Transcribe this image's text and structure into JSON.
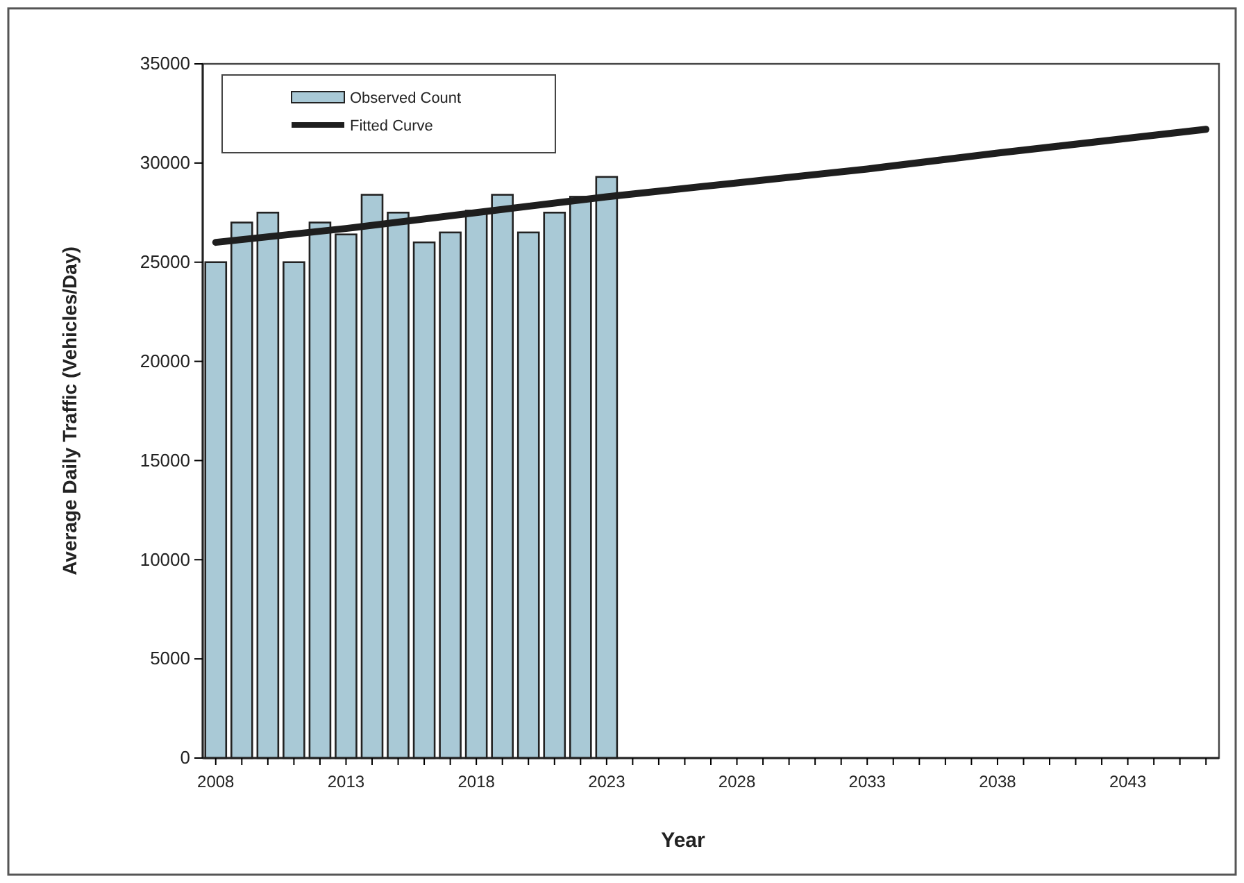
{
  "chart_data": {
    "type": "bar",
    "xlabel": "Year",
    "ylabel": "Average Daily Traffic (Vehicles/Day)",
    "x": [
      2008,
      2009,
      2010,
      2011,
      2012,
      2013,
      2014,
      2015,
      2016,
      2017,
      2018,
      2019,
      2020,
      2021,
      2022,
      2023
    ],
    "series": [
      {
        "name": "Observed Count",
        "color": "#a9c9d6",
        "values": [
          25000,
          27000,
          27500,
          25000,
          27000,
          26400,
          28400,
          27500,
          26000,
          26500,
          27600,
          28400,
          26500,
          27500,
          28300,
          29300
        ]
      },
      {
        "name": "Fitted Curve",
        "type": "line",
        "color": "#1e1e1e",
        "x": [
          2008,
          2013,
          2018,
          2023,
          2028,
          2033,
          2038,
          2046
        ],
        "values": [
          26000,
          26700,
          27500,
          28300,
          29000,
          29700,
          30500,
          31700
        ]
      }
    ],
    "xlim": [
      2007.5,
      2046.5
    ],
    "xticks": [
      2008,
      {
        "value": 2009,
        "label": null
      },
      {
        "value": 2010,
        "label": null
      },
      {
        "value": 2011,
        "label": null
      },
      {
        "value": 2012,
        "label": null
      },
      2013,
      {
        "value": 2014,
        "label": null
      },
      {
        "value": 2015,
        "label": null
      },
      {
        "value": 2016,
        "label": null
      },
      {
        "value": 2017,
        "label": null
      },
      2018,
      {
        "value": 2019,
        "label": null
      },
      {
        "value": 2020,
        "label": null
      },
      {
        "value": 2021,
        "label": null
      },
      {
        "value": 2022,
        "label": null
      },
      2023,
      {
        "value": 2024,
        "label": null
      },
      {
        "value": 2025,
        "label": null
      },
      {
        "value": 2026,
        "label": null
      },
      {
        "value": 2027,
        "label": null
      },
      2028,
      {
        "value": 2029,
        "label": null
      },
      {
        "value": 2030,
        "label": null
      },
      {
        "value": 2031,
        "label": null
      },
      {
        "value": 2032,
        "label": null
      },
      2033,
      {
        "value": 2034,
        "label": null
      },
      {
        "value": 2035,
        "label": null
      },
      {
        "value": 2036,
        "label": null
      },
      {
        "value": 2037,
        "label": null
      },
      2038,
      {
        "value": 2039,
        "label": null
      },
      {
        "value": 2040,
        "label": null
      },
      {
        "value": 2041,
        "label": null
      },
      {
        "value": 2042,
        "label": null
      },
      2043,
      {
        "value": 2044,
        "label": null
      },
      {
        "value": 2045,
        "label": null
      },
      {
        "value": 2046,
        "label": null
      }
    ],
    "ylim": [
      0,
      35000
    ],
    "yticks": [
      0,
      5000,
      10000,
      15000,
      20000,
      25000,
      30000,
      35000
    ],
    "grid": false,
    "legend": "top left"
  }
}
